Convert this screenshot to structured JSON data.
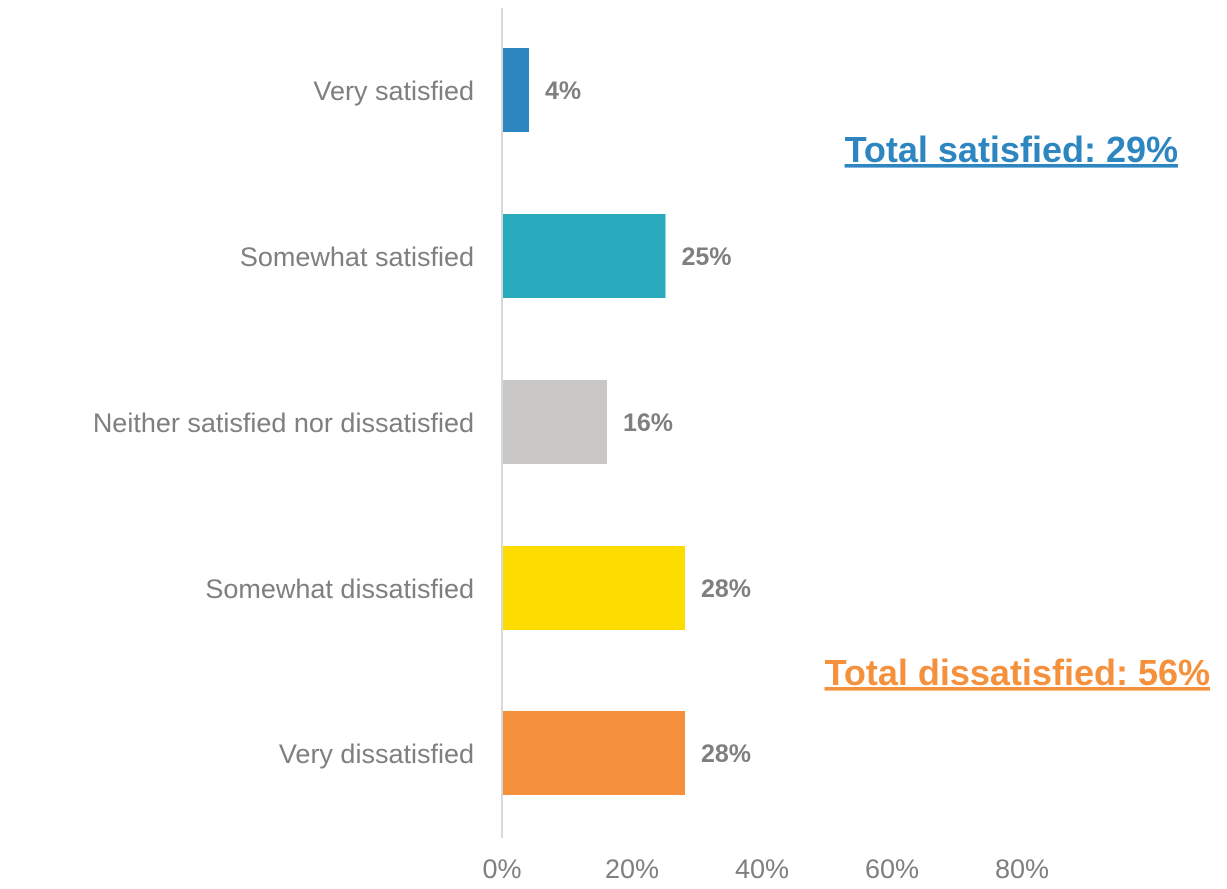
{
  "chart_data": {
    "type": "bar",
    "orientation": "horizontal",
    "categories": [
      "Very satisfied",
      "Somewhat satisfied",
      "Neither satisfied nor dissatisfied",
      "Somewhat dissatisfied",
      "Very dissatisfied"
    ],
    "values": [
      4,
      25,
      16,
      28,
      28
    ],
    "value_labels": [
      "4%",
      "25%",
      "16%",
      "28%",
      "28%"
    ],
    "colors": [
      "#2e86c1",
      "#2aabbd",
      "#c8c7c5",
      "#fddc00",
      "#f5913c"
    ],
    "xlim": [
      0,
      100
    ],
    "x_ticks": [
      0,
      20,
      40,
      60,
      80
    ],
    "x_tick_labels": [
      "0%",
      "20%",
      "40%",
      "60%",
      "80%"
    ],
    "grid": false,
    "title": "",
    "xlabel": "",
    "ylabel": "",
    "annotations": [
      {
        "text": "Total satisfied: 29%",
        "color": "#2e86c1",
        "near": "Very satisfied"
      },
      {
        "text": "Total dissatisfied: 56%",
        "color": "#f5913c",
        "near": "Very dissatisfied"
      }
    ],
    "axis_color": "#d9d9d9",
    "text_color": "#7f7f7f"
  }
}
